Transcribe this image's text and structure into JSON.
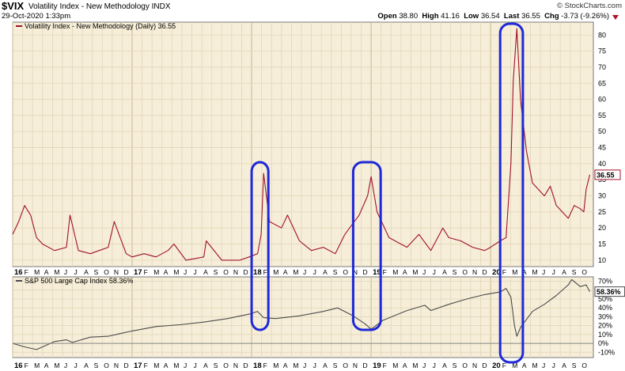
{
  "header": {
    "symbol": "$VIX",
    "name": "Volatility Index - New Methodology",
    "exchange": "INDX",
    "date": "29-Oct-2020 1:33pm",
    "brand": "© StockCharts.com",
    "open_label": "Open",
    "open": "38.80",
    "high_label": "High",
    "high": "41.16",
    "low_label": "Low",
    "low": "36.54",
    "last_label": "Last",
    "last": "36.55",
    "chg_label": "Chg",
    "chg": "-3.73 (-9.26%)",
    "down_icon": "triangle-down-icon"
  },
  "colors": {
    "plot_bg": "#f6eed9",
    "vix_line": "#a0102a",
    "spx_line": "#4a4a4a",
    "highlight": "#1e28d8"
  },
  "chart_data": [
    {
      "type": "line",
      "legend": "Volatility Index - New Methodology (Daily) 36.55",
      "last_value_label": "36.55",
      "ylim": [
        8,
        84
      ],
      "y_ticks": [
        10,
        15,
        20,
        25,
        30,
        35,
        40,
        45,
        50,
        55,
        60,
        65,
        70,
        75,
        80
      ],
      "grid": true,
      "series": [
        {
          "x": [
            2016.0,
            2016.05,
            2016.1,
            2016.15,
            2016.2,
            2016.25,
            2016.35,
            2016.45,
            2016.48,
            2016.55,
            2016.65,
            2016.8,
            2016.85,
            2016.95,
            2017.0,
            2017.1,
            2017.2,
            2017.3,
            2017.35,
            2017.45,
            2017.6,
            2017.62,
            2017.75,
            2017.9,
            2017.98,
            2018.05,
            2018.08,
            2018.1,
            2018.15,
            2018.25,
            2018.3,
            2018.4,
            2018.5,
            2018.6,
            2018.7,
            2018.78,
            2018.82,
            2018.9,
            2018.97,
            2019.0,
            2019.05,
            2019.15,
            2019.3,
            2019.4,
            2019.5,
            2019.6,
            2019.65,
            2019.75,
            2019.85,
            2019.95,
            2020.0,
            2020.08,
            2020.13,
            2020.17,
            2020.19,
            2020.22,
            2020.25,
            2020.3,
            2020.35,
            2020.4,
            2020.45,
            2020.5,
            2020.55,
            2020.6,
            2020.65,
            2020.7,
            2020.75,
            2020.78,
            2020.8,
            2020.83
          ],
          "values": [
            18,
            22,
            27,
            24,
            17,
            15,
            13,
            14,
            24,
            13,
            12,
            14,
            22,
            12,
            11,
            12,
            11,
            13,
            15,
            10,
            11,
            16,
            10,
            10,
            11,
            12,
            18,
            37,
            22,
            20,
            24,
            16,
            13,
            14,
            12,
            18,
            20,
            24,
            30,
            36,
            25,
            17,
            14,
            18,
            13,
            20,
            17,
            16,
            14,
            13,
            14,
            16,
            17,
            40,
            66,
            82,
            60,
            44,
            34,
            32,
            30,
            33,
            27,
            25,
            23,
            27,
            26,
            25,
            32,
            36.55
          ]
        }
      ]
    },
    {
      "type": "line",
      "legend": "S&P 500 Large Cap Index 58.36%",
      "last_value_label": "58.36%",
      "ylim": [
        -16,
        75
      ],
      "y_ticks": [
        "70%",
        "60%",
        "50%",
        "40%",
        "30%",
        "20%",
        "10%",
        "0%",
        "-10%"
      ],
      "grid": true,
      "series": [
        {
          "x": [
            2016.0,
            2016.1,
            2016.2,
            2016.35,
            2016.45,
            2016.5,
            2016.65,
            2016.8,
            2016.9,
            2017.0,
            2017.2,
            2017.4,
            2017.6,
            2017.8,
            2017.98,
            2018.05,
            2018.1,
            2018.2,
            2018.4,
            2018.6,
            2018.72,
            2018.85,
            2018.95,
            2019.0,
            2019.1,
            2019.3,
            2019.45,
            2019.5,
            2019.65,
            2019.8,
            2019.95,
            2020.08,
            2020.13,
            2020.17,
            2020.2,
            2020.22,
            2020.25,
            2020.35,
            2020.45,
            2020.55,
            2020.65,
            2020.68,
            2020.75,
            2020.8,
            2020.83
          ],
          "values": [
            0,
            -4,
            -7,
            2,
            4,
            1,
            7,
            8,
            11,
            14,
            19,
            21,
            24,
            28,
            33,
            36,
            29,
            28,
            31,
            36,
            40,
            31,
            22,
            16,
            26,
            37,
            43,
            37,
            44,
            50,
            55,
            58,
            62,
            52,
            20,
            8,
            18,
            36,
            44,
            54,
            66,
            72,
            64,
            66,
            58.36
          ]
        }
      ]
    }
  ],
  "x_axis": {
    "labels": [
      "16",
      "F",
      "M",
      "A",
      "M",
      "J",
      "J",
      "A",
      "S",
      "O",
      "N",
      "D",
      "17",
      "F",
      "M",
      "A",
      "M",
      "J",
      "J",
      "A",
      "S",
      "O",
      "N",
      "D",
      "18",
      "F",
      "M",
      "A",
      "M",
      "J",
      "J",
      "A",
      "S",
      "O",
      "N",
      "D",
      "19",
      "F",
      "M",
      "A",
      "M",
      "J",
      "J",
      "A",
      "S",
      "O",
      "N",
      "D",
      "20",
      "F",
      "M",
      "A",
      "M",
      "J",
      "J",
      "A",
      "S",
      "O"
    ],
    "year_labels": [
      "16",
      "17",
      "18",
      "19",
      "20"
    ]
  },
  "highlights": [
    {
      "x_start": 2018.0,
      "x_end": 2018.14
    },
    {
      "x_start": 2018.85,
      "x_end": 2019.08
    },
    {
      "x_start": 2020.08,
      "x_end": 2020.27
    }
  ]
}
